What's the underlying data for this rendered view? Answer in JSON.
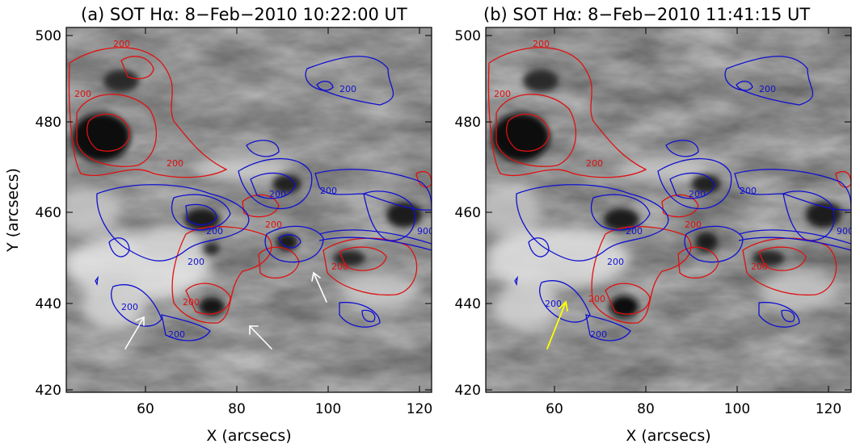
{
  "panels": [
    {
      "title": "(a) SOT Hα: 8−Feb−2010 10:22:00 UT",
      "ylabel": "Y (arcsecs)",
      "xlabel": "X (arcsecs)",
      "xticks": [
        "60",
        "80",
        "100",
        "120"
      ],
      "yticks": [
        "420",
        "440",
        "460",
        "480",
        "500"
      ],
      "contour_labels": [
        "200",
        "200",
        "200",
        "200",
        "200",
        "200",
        "200",
        "200",
        "200",
        "200",
        "200",
        "200",
        "900",
        "200"
      ],
      "arrow_color": "#ffffff"
    },
    {
      "title": "(b) SOT Hα: 8−Feb−2010 11:41:15 UT",
      "ylabel": "",
      "xlabel": "X (arcsecs)",
      "xticks": [
        "60",
        "80",
        "100",
        "120"
      ],
      "yticks": [
        "420",
        "440",
        "460",
        "480",
        "500"
      ],
      "contour_labels": [
        "200",
        "200",
        "200",
        "200",
        "200",
        "200",
        "200",
        "200",
        "200",
        "200",
        "200",
        "200",
        "900",
        "200"
      ],
      "arrow_color": "#ffff00"
    }
  ],
  "colors": {
    "positive": "#e01010",
    "negative": "#1010d0"
  }
}
